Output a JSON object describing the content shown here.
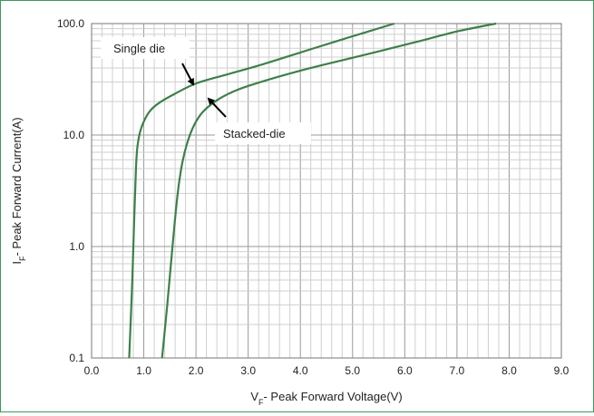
{
  "chart_data": {
    "type": "line",
    "xlabel_main": "V",
    "xlabel_sub": "F",
    "xlabel_rest": "- Peak Forward Voltage(V)",
    "ylabel_main": "I",
    "ylabel_sub": "F",
    "ylabel_rest": "- Peak Forward Current(A)",
    "xlim": [
      0,
      9
    ],
    "ylim": [
      0.1,
      100
    ],
    "yscale": "log",
    "grid": true,
    "x_ticks": [
      "0.0",
      "1.0",
      "2.0",
      "3.0",
      "4.0",
      "5.0",
      "6.0",
      "7.0",
      "8.0",
      "9.0"
    ],
    "y_ticks": [
      {
        "label": "0.1",
        "value": 0.1
      },
      {
        "label": "1.0",
        "value": 1
      },
      {
        "label": "10.0",
        "value": 10
      },
      {
        "label": "100.0",
        "value": 100
      }
    ],
    "series": [
      {
        "name": "Single die",
        "color": "#3f7f4a",
        "x": [
          0.72,
          0.78,
          0.82,
          0.85,
          0.88,
          0.95,
          1.1,
          1.3,
          1.6,
          2.0,
          2.6,
          3.2,
          4.0,
          4.8,
          5.8
        ],
        "y": [
          0.1,
          0.5,
          2.0,
          5.0,
          8.0,
          11.5,
          16.0,
          19.5,
          23.5,
          29.0,
          35.0,
          42.0,
          55.0,
          72.0,
          100.0
        ]
      },
      {
        "name": "Stacked-die",
        "color": "#3f7f4a",
        "x": [
          1.35,
          1.45,
          1.55,
          1.65,
          1.75,
          1.9,
          2.1,
          2.4,
          2.8,
          3.4,
          4.2,
          5.2,
          6.2,
          7.0,
          7.75
        ],
        "y": [
          0.1,
          0.3,
          1.0,
          3.0,
          6.0,
          10.5,
          15.5,
          20.5,
          25.5,
          31.5,
          40.0,
          52.0,
          68.0,
          85.0,
          100.0
        ]
      }
    ],
    "annotations": [
      {
        "text": "Single die",
        "target_series": 0
      },
      {
        "text": "Stacked-die",
        "target_series": 1
      }
    ]
  }
}
